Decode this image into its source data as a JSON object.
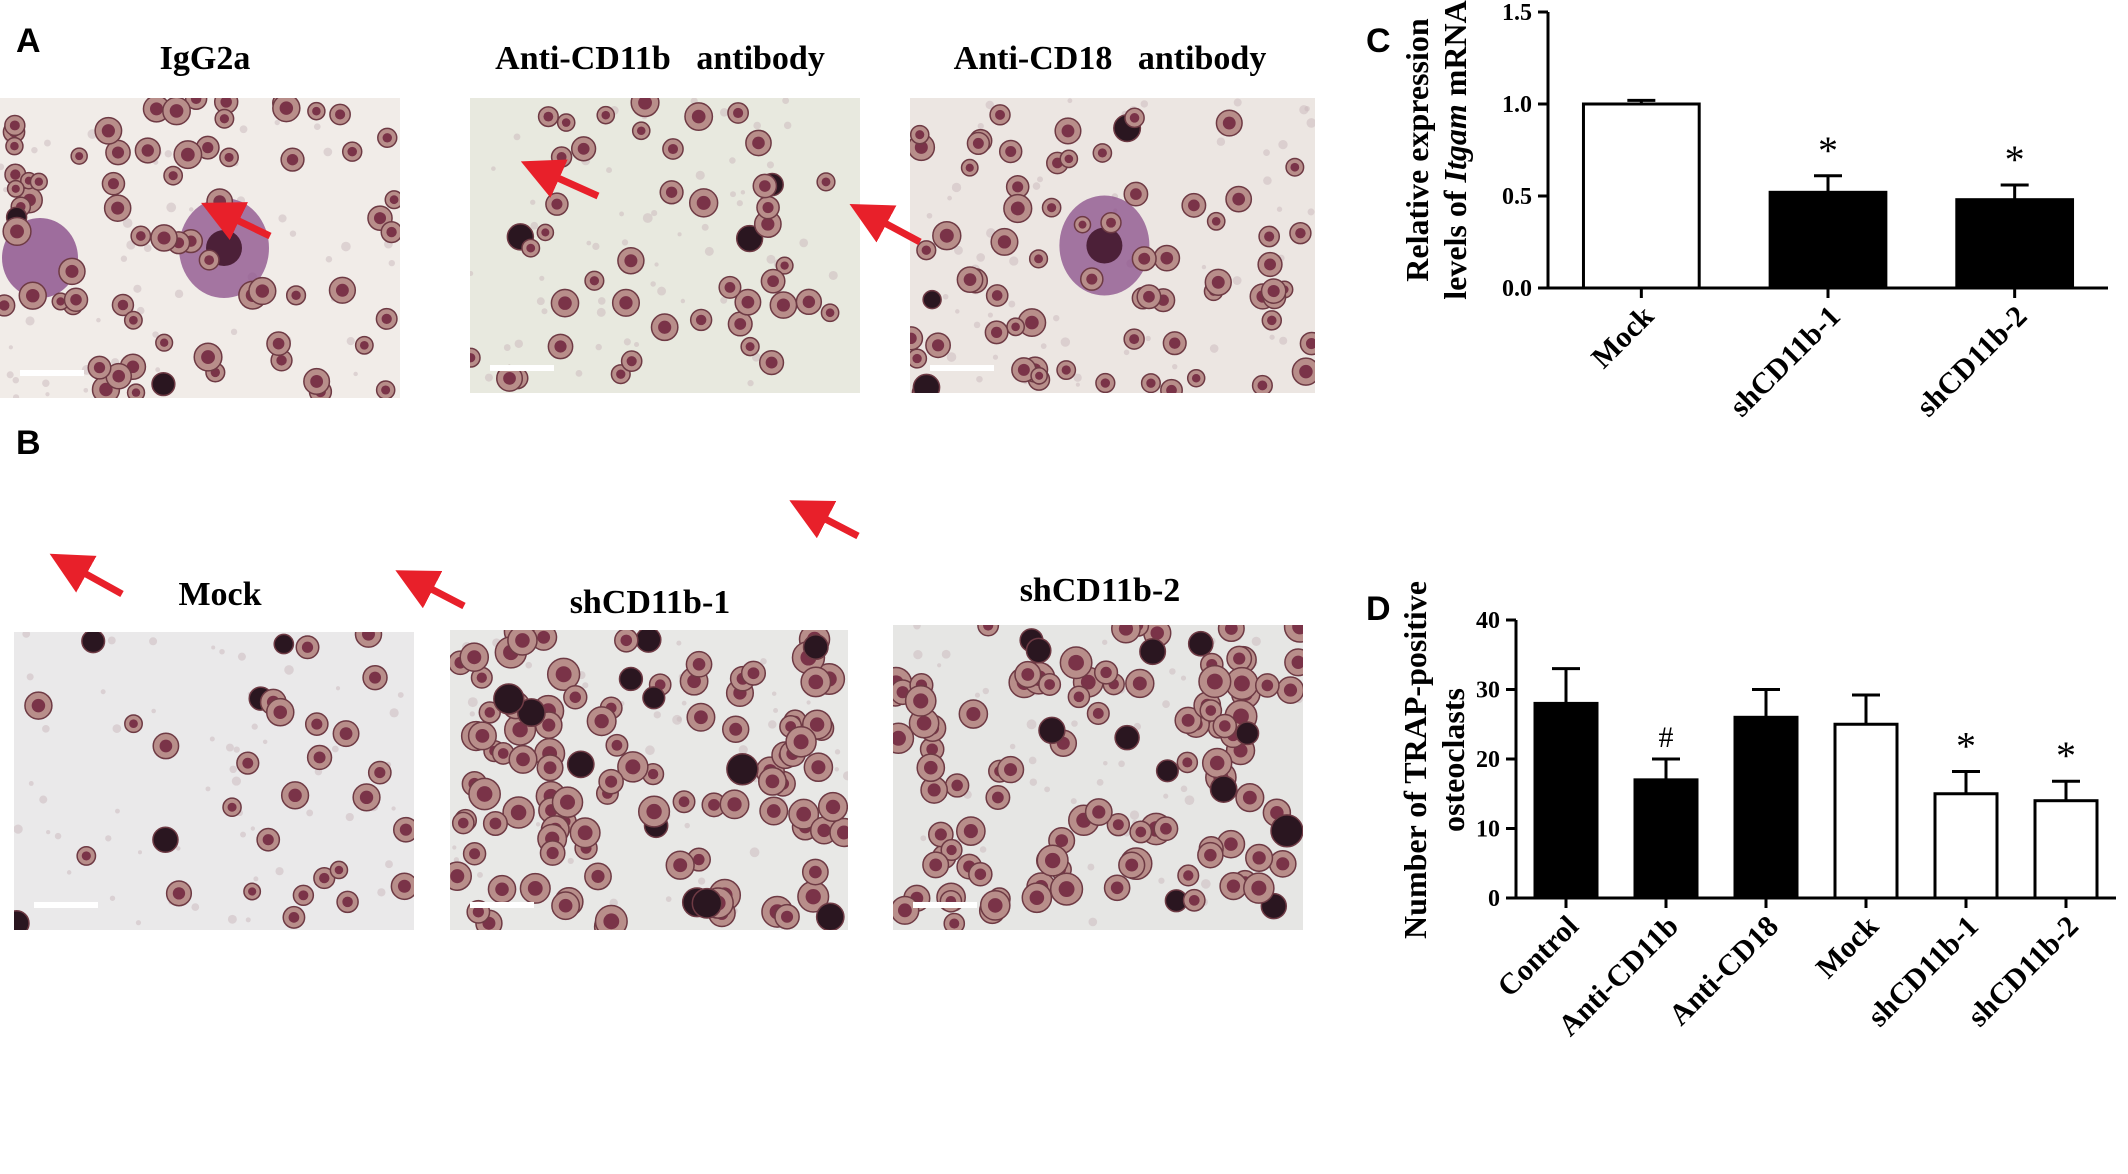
{
  "panels": {
    "A": {
      "letter": "A",
      "images": [
        {
          "title": "IgG2a",
          "kind": "large-osteoclast"
        },
        {
          "title": "Anti-CD11b   antibody",
          "kind": "small-cells"
        },
        {
          "title": "Anti-CD18   antibody",
          "kind": "large-osteoclast"
        }
      ]
    },
    "B": {
      "letter": "B",
      "images": [
        {
          "title": "Mock",
          "kind": "sparse-cells"
        },
        {
          "title": "shCD11b-1",
          "kind": "dense-cells"
        },
        {
          "title": "shCD11b-2",
          "kind": "dense-cells"
        }
      ]
    },
    "C": {
      "letter": "C"
    },
    "D": {
      "letter": "D"
    }
  },
  "colors": {
    "arrow": "#e8202a",
    "stain": "#7a3348",
    "dark_cell": "#2a1620",
    "bar_black": "#000000",
    "bar_white": "#ffffff"
  },
  "chart_data": [
    {
      "type": "bar",
      "panel": "C",
      "categories": [
        "Mock",
        "shCD11b-1",
        "shCD11b-2"
      ],
      "values": [
        1.0,
        0.52,
        0.48
      ],
      "errors": [
        0.02,
        0.09,
        0.08
      ],
      "fills": [
        "white",
        "black",
        "black"
      ],
      "annotations": [
        "",
        "*",
        "*"
      ],
      "ylabel_line1": "Relative expression",
      "ylabel_line2_prefix": "levels of ",
      "ylabel_line2_italic": "Itgam",
      "ylabel_line2_suffix": " mRNA",
      "ylim": [
        0,
        1.5
      ],
      "yticks": [
        0.0,
        0.5,
        1.0,
        1.5
      ],
      "ytick_labels": [
        "0.0",
        "0.5",
        "1.0",
        "1.5"
      ]
    },
    {
      "type": "bar",
      "panel": "D",
      "categories": [
        "Control",
        "Anti-CD11b",
        "Anti-CD18",
        "Mock",
        "shCD11b-1",
        "shCD11b-2"
      ],
      "values": [
        28,
        17,
        26,
        25,
        15,
        14
      ],
      "errors": [
        5,
        3,
        4,
        4.2,
        3.2,
        2.8
      ],
      "fills": [
        "black",
        "black",
        "black",
        "white",
        "white",
        "white"
      ],
      "annotations": [
        "",
        "#",
        "",
        "",
        "*",
        "*"
      ],
      "ylabel_line1": "Number  of TRAP-positive",
      "ylabel_line2": "osteoclasts",
      "ylim": [
        0,
        40
      ],
      "yticks": [
        0,
        10,
        20,
        30,
        40
      ],
      "ytick_labels": [
        "0",
        "10",
        "20",
        "30",
        "40"
      ]
    }
  ]
}
